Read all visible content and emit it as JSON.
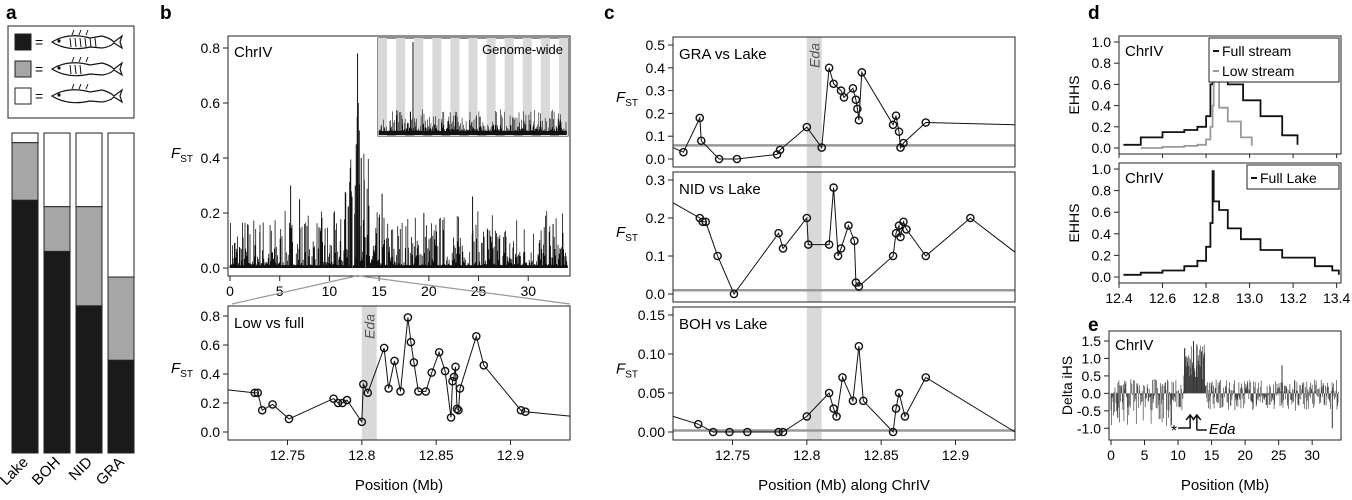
{
  "panel_letters": [
    "a",
    "b",
    "c",
    "d",
    "e"
  ],
  "chart_data": [
    {
      "id": "a",
      "type": "bar",
      "legend_symbol": "=",
      "legend_icon": "stickleback-fish-icon",
      "categories": [
        "Lake",
        "BOH",
        "NID",
        "GRA"
      ],
      "series": [
        {
          "color": "#1a1a1a",
          "values": [
            0.79,
            0.63,
            0.46,
            0.29
          ]
        },
        {
          "color": "#a6a6a6",
          "values": [
            0.18,
            0.14,
            0.31,
            0.26
          ]
        },
        {
          "color": "#ffffff",
          "values": [
            0.03,
            0.23,
            0.23,
            0.45
          ]
        }
      ],
      "ylim": [
        0,
        1
      ]
    },
    {
      "id": "b-top",
      "type": "bar",
      "label": "ChrIV",
      "ylabel_main": "F",
      "ylabel_sub": "ST",
      "xlim": [
        0,
        34
      ],
      "ylim": [
        0,
        0.8
      ],
      "xticks": [
        "0",
        "5",
        "10",
        "15",
        "20",
        "25",
        "30"
      ],
      "yticks": [
        "0.0",
        "0.2",
        "0.4",
        "0.6",
        "0.8"
      ],
      "peak_values": [
        [
          12.6,
          0.3
        ],
        [
          12.7,
          0.45
        ],
        [
          12.8,
          0.55
        ],
        [
          12.83,
          0.78
        ],
        [
          12.9,
          0.6
        ],
        [
          13.0,
          0.5
        ],
        [
          13.2,
          0.4
        ],
        [
          13.5,
          0.32
        ],
        [
          11.9,
          0.22
        ],
        [
          6.1,
          0.3
        ],
        [
          7.0,
          0.25
        ],
        [
          15.3,
          0.27
        ],
        [
          24.4,
          0.26
        ],
        [
          19.5,
          0.2
        ],
        [
          3.0,
          0.13
        ],
        [
          32.5,
          0.16
        ]
      ],
      "inset": {
        "label": "Genome-wide",
        "n_chromosomes": 21
      }
    },
    {
      "id": "b-bottom",
      "type": "line",
      "label": "Low vs full",
      "highlight": "Eda",
      "ylabel_main": "F",
      "ylabel_sub": "ST",
      "xlabel": "Position (Mb)",
      "xlim": [
        12.71,
        12.94
      ],
      "ylim": [
        0,
        0.8
      ],
      "xticks": [
        "12.75",
        "12.8",
        "12.85",
        "12.9"
      ],
      "yticks": [
        "0.0",
        "0.2",
        "0.4",
        "0.6",
        "0.8"
      ],
      "x": [
        12.71,
        12.728,
        12.73,
        12.733,
        12.74,
        12.751,
        12.781,
        12.784,
        12.787,
        12.79,
        12.8,
        12.801,
        12.804,
        12.815,
        12.818,
        12.822,
        12.826,
        12.831,
        12.833,
        12.835,
        12.838,
        12.843,
        12.847,
        12.852,
        12.856,
        12.86,
        12.861,
        12.862,
        12.863,
        12.864,
        12.865,
        12.866,
        12.877,
        12.882,
        12.907,
        12.91,
        12.94
      ],
      "y": [
        0.29,
        0.27,
        0.27,
        0.15,
        0.19,
        0.09,
        0.23,
        0.2,
        0.2,
        0.22,
        0.07,
        0.33,
        0.27,
        0.58,
        0.3,
        0.49,
        0.28,
        0.79,
        0.62,
        0.48,
        0.28,
        0.28,
        0.41,
        0.55,
        0.42,
        0.1,
        0.35,
        0.38,
        0.45,
        0.16,
        0.15,
        0.3,
        0.66,
        0.46,
        0.15,
        0.14,
        0.11
      ]
    },
    {
      "id": "c-1",
      "type": "line",
      "label": "GRA vs Lake",
      "highlight": "Eda",
      "ylabel_main": "F",
      "ylabel_sub": "ST",
      "xlim": [
        12.71,
        12.94
      ],
      "ylim": [
        0,
        0.5
      ],
      "yticks": [
        "0.0",
        "0.1",
        "0.2",
        "0.3",
        "0.4",
        "0.5"
      ],
      "baseline": 0.06,
      "x": [
        12.71,
        12.717,
        12.728,
        12.729,
        12.741,
        12.753,
        12.78,
        12.782,
        12.8,
        12.81,
        12.815,
        12.818,
        12.823,
        12.825,
        12.831,
        12.833,
        12.834,
        12.835,
        12.837,
        12.858,
        12.86,
        12.862,
        12.863,
        12.865,
        12.88,
        12.94
      ],
      "y": [
        0.05,
        0.03,
        0.18,
        0.08,
        0.0,
        0.0,
        0.02,
        0.04,
        0.14,
        0.05,
        0.4,
        0.33,
        0.3,
        0.27,
        0.31,
        0.26,
        0.22,
        0.17,
        0.38,
        0.15,
        0.19,
        0.12,
        0.05,
        0.07,
        0.16,
        0.15
      ]
    },
    {
      "id": "c-2",
      "type": "line",
      "label": "NID vs Lake",
      "highlight": "Eda",
      "ylabel_main": "F",
      "ylabel_sub": "ST",
      "xlim": [
        12.71,
        12.94
      ],
      "ylim": [
        0,
        0.3
      ],
      "yticks": [
        "0.0",
        "0.1",
        "0.2",
        "0.3"
      ],
      "baseline": 0.01,
      "x": [
        12.71,
        12.728,
        12.73,
        12.732,
        12.74,
        12.751,
        12.781,
        12.784,
        12.8,
        12.801,
        12.815,
        12.818,
        12.821,
        12.823,
        12.828,
        12.832,
        12.833,
        12.835,
        12.858,
        12.86,
        12.862,
        12.863,
        12.865,
        12.867,
        12.88,
        12.91,
        12.94
      ],
      "y": [
        0.24,
        0.2,
        0.19,
        0.19,
        0.1,
        0.0,
        0.16,
        0.12,
        0.2,
        0.13,
        0.13,
        0.28,
        0.1,
        0.12,
        0.18,
        0.14,
        0.03,
        0.02,
        0.1,
        0.16,
        0.18,
        0.15,
        0.19,
        0.17,
        0.1,
        0.2,
        0.11
      ]
    },
    {
      "id": "c-3",
      "type": "line",
      "label": "BOH vs Lake",
      "highlight": "Eda",
      "ylabel_main": "F",
      "ylabel_sub": "ST",
      "xlabel": "Position (Mb) along ChrIV",
      "xlim": [
        12.71,
        12.94
      ],
      "ylim": [
        0,
        0.15
      ],
      "xticks": [
        "12.75",
        "12.8",
        "12.85",
        "12.9"
      ],
      "yticks": [
        "0.00",
        "0.05",
        "0.10",
        "0.15"
      ],
      "baseline": 0.002,
      "x": [
        12.71,
        12.727,
        12.737,
        12.748,
        12.76,
        12.781,
        12.784,
        12.8,
        12.815,
        12.818,
        12.82,
        12.824,
        12.831,
        12.835,
        12.838,
        12.858,
        12.86,
        12.862,
        12.866,
        12.88,
        12.94
      ],
      "y": [
        0.02,
        0.01,
        0.0,
        0.0,
        0.0,
        0.0,
        0.0,
        0.02,
        0.05,
        0.03,
        0.02,
        0.07,
        0.04,
        0.11,
        0.04,
        0.0,
        0.03,
        0.05,
        0.02,
        0.07,
        0.0
      ]
    },
    {
      "id": "d-1",
      "type": "line",
      "label": "ChrIV",
      "ylabel": "EHHS",
      "xlim": [
        12.4,
        13.42
      ],
      "ylim": [
        0,
        1
      ],
      "yticks": [
        "0.0",
        "0.2",
        "0.4",
        "0.6",
        "0.8",
        "1.0"
      ],
      "series": [
        {
          "name": "Full stream",
          "color": "#111111",
          "x": [
            12.42,
            12.5,
            12.6,
            12.7,
            12.76,
            12.8,
            12.82,
            12.83,
            12.835,
            12.85,
            12.9,
            12.97,
            13.05,
            13.15,
            13.22
          ],
          "y": [
            0.03,
            0.1,
            0.15,
            0.17,
            0.2,
            0.3,
            0.6,
            0.97,
            0.65,
            0.83,
            0.6,
            0.45,
            0.3,
            0.12,
            0.03
          ]
        },
        {
          "name": "Low stream",
          "color": "#9a9a9a",
          "x": [
            12.5,
            12.6,
            12.7,
            12.76,
            12.8,
            12.82,
            12.83,
            12.835,
            12.86,
            12.9,
            12.96,
            13.01
          ],
          "y": [
            0.0,
            0.01,
            0.02,
            0.03,
            0.08,
            0.2,
            0.4,
            0.9,
            0.38,
            0.25,
            0.1,
            0.02
          ]
        }
      ]
    },
    {
      "id": "d-2",
      "type": "line",
      "label": "ChrIV",
      "ylabel": "EHHS",
      "xlim": [
        12.4,
        13.42
      ],
      "ylim": [
        0,
        1
      ],
      "xticks": [
        "12.4",
        "12.6",
        "12.8",
        "13.0",
        "13.2",
        "13.4"
      ],
      "yticks": [
        "0.0",
        "0.2",
        "0.4",
        "0.6",
        "0.8",
        "1.0"
      ],
      "series": [
        {
          "name": "Full Lake",
          "color": "#111111",
          "x": [
            12.42,
            12.5,
            12.6,
            12.7,
            12.76,
            12.8,
            12.82,
            12.83,
            12.835,
            12.86,
            12.9,
            12.96,
            13.05,
            13.15,
            13.3,
            13.38,
            13.41
          ],
          "y": [
            0.02,
            0.04,
            0.06,
            0.1,
            0.15,
            0.28,
            0.5,
            0.98,
            0.7,
            0.62,
            0.45,
            0.35,
            0.25,
            0.18,
            0.1,
            0.06,
            0.02
          ]
        }
      ]
    },
    {
      "id": "e",
      "type": "bar",
      "label": "ChrIV",
      "ylabel": "Delta iHS",
      "xlabel": "Position (Mb)",
      "xlim": [
        0,
        34
      ],
      "ylim": [
        -1.25,
        1.7
      ],
      "xticks": [
        "0",
        "5",
        "10",
        "15",
        "20",
        "25",
        "30"
      ],
      "yticks": [
        "-1.0",
        "-0.5",
        "0.0",
        "0.5",
        "1.0",
        "1.5"
      ],
      "peak_values": [
        [
          11.0,
          1.3
        ],
        [
          12.3,
          1.5
        ],
        [
          12.8,
          1.4
        ],
        [
          13.5,
          1.2
        ],
        [
          9.0,
          -0.9
        ],
        [
          1.0,
          -0.7
        ],
        [
          33.0,
          -1.0
        ],
        [
          25.5,
          0.8
        ]
      ],
      "annotations": [
        {
          "symbol": "*",
          "x": 9.4
        },
        {
          "arrow": "right",
          "x": 11.8
        },
        {
          "arrow": "right",
          "x": 12.8,
          "text": "Eda"
        }
      ]
    }
  ]
}
